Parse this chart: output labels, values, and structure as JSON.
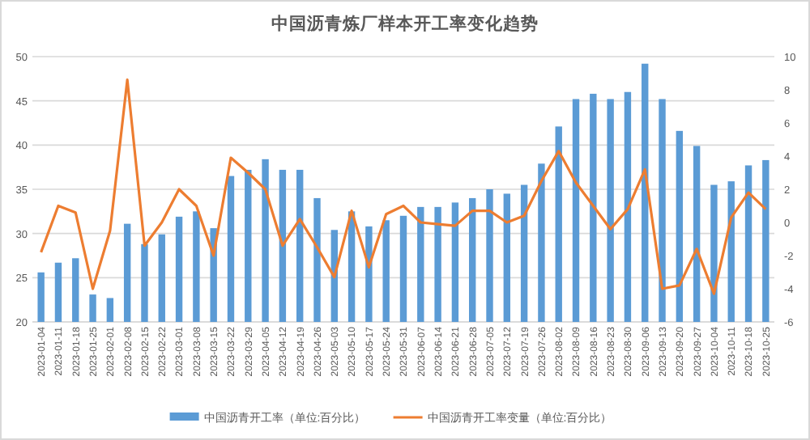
{
  "chart_data": {
    "type": "bar",
    "title": "中国沥青炼厂样本开工率变化趋势",
    "categories": [
      "2023-01-04",
      "2023-01-11",
      "2023-01-18",
      "2023-01-25",
      "2023-02-01",
      "2023-02-08",
      "2023-02-15",
      "2023-02-22",
      "2023-03-01",
      "2023-03-08",
      "2023-03-15",
      "2023-03-22",
      "2023-03-29",
      "2023-04-05",
      "2023-04-12",
      "2023-04-19",
      "2023-04-26",
      "2023-05-03",
      "2023-05-10",
      "2023-05-17",
      "2023-05-24",
      "2023-05-31",
      "2023-06-07",
      "2023-06-14",
      "2023-06-21",
      "2023-06-28",
      "2023-07-05",
      "2023-07-12",
      "2023-07-19",
      "2023-07-26",
      "2023-08-02",
      "2023-08-09",
      "2023-08-16",
      "2023-08-23",
      "2023-08-30",
      "2023-09-06",
      "2023-09-13",
      "2023-09-20",
      "2023-09-27",
      "2023-10-04",
      "2023-10-11",
      "2023-10-18",
      "2023-10-25"
    ],
    "series": [
      {
        "name": "中国沥青开工率（单位:百分比）",
        "color": "#5b9bd5",
        "values": [
          25.6,
          26.7,
          27.2,
          23.1,
          22.7,
          31.1,
          28.8,
          29.9,
          31.9,
          32.5,
          30.6,
          36.5,
          37.2,
          38.4,
          37.2,
          37.2,
          34.0,
          30.4,
          32.5,
          30.8,
          31.5,
          32.0,
          33.0,
          33.0,
          33.5,
          34.0,
          35.0,
          34.5,
          35.5,
          37.9,
          42.1,
          45.2,
          45.8,
          45.2,
          46.0,
          49.2,
          45.2,
          41.6,
          39.9,
          35.5,
          35.9,
          37.7,
          38.3
        ]
      },
      {
        "name": "中国沥青开工率变量（单位:百分比）",
        "type": "line",
        "axis": "y2",
        "color": "#ed7d31",
        "values": [
          -1.8,
          1.0,
          0.6,
          -4.0,
          -0.5,
          8.6,
          -1.4,
          0.0,
          2.0,
          1.0,
          -2.0,
          3.9,
          3.0,
          2.0,
          -1.4,
          0.2,
          -1.5,
          -3.3,
          0.7,
          -2.7,
          0.5,
          1.0,
          0.0,
          -0.1,
          -0.2,
          0.7,
          0.7,
          0.0,
          0.4,
          2.5,
          4.3,
          2.4,
          1.0,
          -0.4,
          0.8,
          3.2,
          -4.0,
          -3.8,
          -1.6,
          -4.3,
          0.3,
          1.8,
          0.8
        ]
      }
    ],
    "ylim": [
      20,
      50
    ],
    "yticks": [
      20,
      25,
      30,
      35,
      40,
      45,
      50
    ],
    "y2lim": [
      -6,
      10
    ],
    "y2ticks": [
      -6,
      -4,
      -2,
      0,
      2,
      4,
      6,
      8,
      10
    ],
    "grid": "y",
    "legend": "bottom"
  }
}
